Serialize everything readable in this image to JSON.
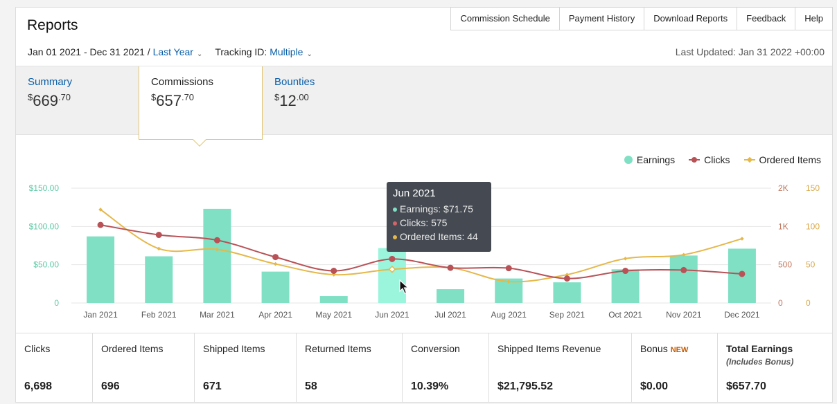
{
  "header": {
    "title": "Reports"
  },
  "topnav": [
    "Commission Schedule",
    "Payment History",
    "Download Reports",
    "Feedback",
    "Help"
  ],
  "filters": {
    "date_range": "Jan 01 2021 - Dec 31 2021 /",
    "period": "Last Year",
    "tracking_label": "Tracking ID:",
    "tracking_value": "Multiple",
    "last_updated": "Last Updated: Jan 31 2022 +00:00"
  },
  "tabs": [
    {
      "label": "Summary",
      "dollar": "$",
      "whole": "669",
      "cents": ".70"
    },
    {
      "label": "Commissions",
      "dollar": "$",
      "whole": "657",
      "cents": ".70"
    },
    {
      "label": "Bounties",
      "dollar": "$",
      "whole": "12",
      "cents": ".00"
    }
  ],
  "legend": {
    "earnings": "Earnings",
    "clicks": "Clicks",
    "ordered": "Ordered Items"
  },
  "colors": {
    "earnings": "#7fe0c4",
    "earnings_hover": "#9af5dc",
    "clicks": "#b85257",
    "ordered": "#e5b84a",
    "axis_left": "#5cc9a4",
    "axis_right_clicks": "#c07860",
    "axis_right_items": "#d9a84a"
  },
  "chart_data": {
    "type": "bar",
    "categories": [
      "Jan 2021",
      "Feb 2021",
      "Mar 2021",
      "Apr 2021",
      "May 2021",
      "Jun 2021",
      "Jul 2021",
      "Aug 2021",
      "Sep 2021",
      "Oct 2021",
      "Nov 2021",
      "Dec 2021"
    ],
    "series": [
      {
        "name": "Earnings",
        "axis": "left",
        "type": "bar",
        "values": [
          87,
          61,
          123,
          41,
          9,
          71.75,
          18,
          32,
          27,
          44,
          62,
          71
        ]
      },
      {
        "name": "Clicks",
        "axis": "right",
        "type": "line",
        "values": [
          1020,
          890,
          820,
          600,
          420,
          575,
          460,
          455,
          320,
          420,
          430,
          380
        ]
      },
      {
        "name": "Ordered Items",
        "axis": "right2",
        "type": "line",
        "values": [
          122,
          71,
          70,
          51,
          37,
          44,
          46,
          28,
          37,
          58,
          63,
          84
        ]
      }
    ],
    "y_left": {
      "ticks": [
        "0",
        "$50.00",
        "$100.00",
        "$150.00"
      ],
      "range": [
        0,
        150
      ]
    },
    "y_right": {
      "ticks": [
        "0",
        "500",
        "1K",
        "2K"
      ],
      "range": [
        0,
        1500
      ]
    },
    "y_right2": {
      "ticks": [
        "0",
        "50",
        "100",
        "150"
      ],
      "range": [
        0,
        150
      ]
    },
    "legend_position": "top-right",
    "highlighted": "Jun 2021"
  },
  "tooltip": {
    "title": "Jun 2021",
    "earnings": "Earnings: $71.75",
    "clicks": "Clicks: 575",
    "ordered": "Ordered Items: 44"
  },
  "stats": [
    {
      "label": "Clicks",
      "value": "6,698"
    },
    {
      "label": "Ordered Items",
      "value": "696"
    },
    {
      "label": "Shipped Items",
      "value": "671"
    },
    {
      "label": "Returned Items",
      "value": "58"
    },
    {
      "label": "Conversion",
      "value": "10.39%"
    },
    {
      "label": "Shipped Items Revenue",
      "value": "$21,795.52"
    },
    {
      "label": "Bonus",
      "badge": "NEW",
      "value": "$0.00"
    },
    {
      "label": "Total Earnings",
      "sub": "(Includes Bonus)",
      "value": "$657.70"
    }
  ]
}
